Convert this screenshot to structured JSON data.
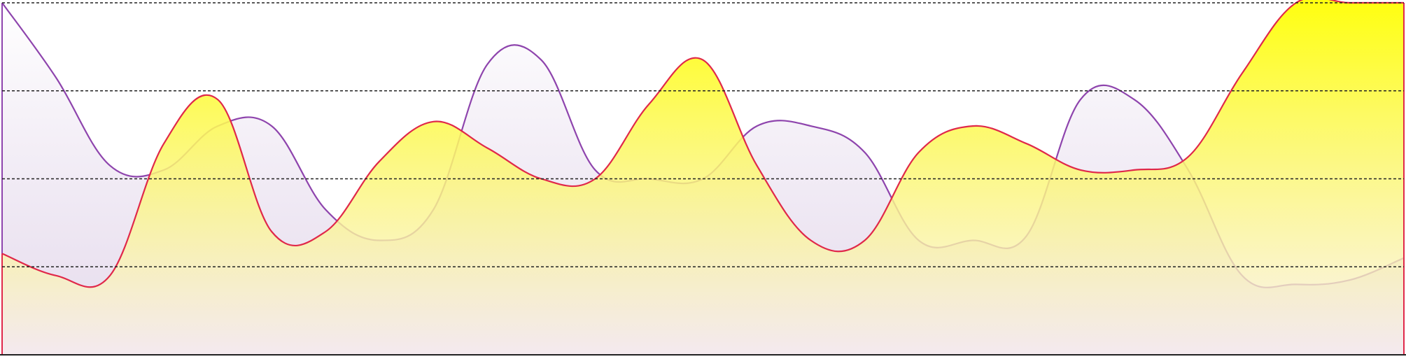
{
  "chart_data": {
    "type": "area",
    "title": "",
    "xlabel": "",
    "ylabel": "",
    "x": [
      0,
      1,
      2,
      3,
      4,
      5,
      6,
      7,
      8,
      9,
      10,
      11,
      12,
      13,
      14,
      15,
      16,
      17,
      18,
      19,
      20,
      21,
      22,
      23,
      24,
      25,
      26
    ],
    "ylim": [
      0,
      4
    ],
    "grid": true,
    "grid_lines": [
      1,
      2,
      3,
      4
    ],
    "legend": "none",
    "series": [
      {
        "color": "#8e44ad",
        "fill_top": "#ffffff",
        "fill_bottom": "#ded0e7",
        "values": [
          4.0,
          3.15,
          2.15,
          2.1,
          2.6,
          2.6,
          1.65,
          1.3,
          1.65,
          3.3,
          3.35,
          2.1,
          2.0,
          2.0,
          2.6,
          2.6,
          2.3,
          1.3,
          1.3,
          1.35,
          2.9,
          2.9,
          2.1,
          0.9,
          0.8,
          0.85,
          1.1
        ]
      },
      {
        "color": "#e0284a",
        "fill_top": "#ffff00",
        "fill_bottom": "#f8eef0",
        "values": [
          1.15,
          0.9,
          0.9,
          2.4,
          2.9,
          1.4,
          1.4,
          2.2,
          2.65,
          2.35,
          2.0,
          2.0,
          2.85,
          3.35,
          2.15,
          1.3,
          1.3,
          2.3,
          2.6,
          2.4,
          2.1,
          2.1,
          2.25,
          3.2,
          4.0,
          4.0,
          4.0
        ]
      }
    ]
  }
}
